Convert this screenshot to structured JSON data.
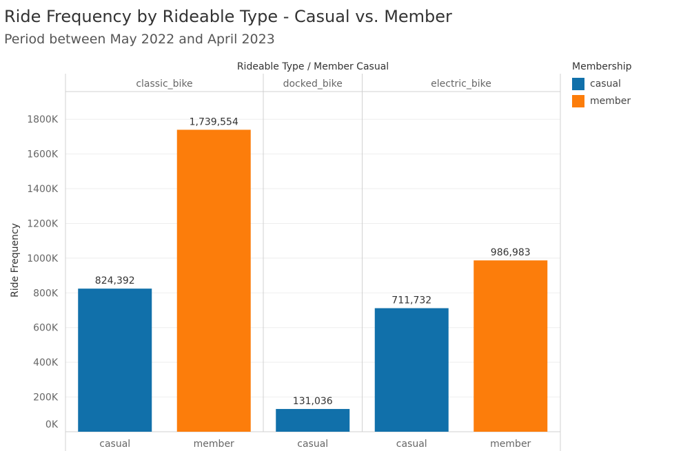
{
  "title": "Ride Frequency by Rideable Type - Casual vs. Member",
  "subtitle": "Period between May 2022 and April 2023",
  "legend": {
    "title": "Membership",
    "items": [
      {
        "label": "casual",
        "color": "#1170aa"
      },
      {
        "label": "member",
        "color": "#fc7d0b"
      }
    ]
  },
  "chart_data": {
    "type": "bar",
    "header_label": "Rideable Type  /  Member Casual",
    "ylabel": "Ride Frequency",
    "ylim": [
      0,
      1900000
    ],
    "yticks": [
      0,
      200000,
      400000,
      600000,
      800000,
      1000000,
      1200000,
      1400000,
      1600000,
      1800000
    ],
    "ytick_labels": [
      "0K",
      "200K",
      "400K",
      "600K",
      "800K",
      "1000K",
      "1200K",
      "1400K",
      "1600K",
      "1800K"
    ],
    "grid": true,
    "panels": [
      {
        "name": "classic_bike",
        "bars": [
          {
            "category": "casual",
            "value": 824392,
            "label": "824,392",
            "color": "#1170aa"
          },
          {
            "category": "member",
            "value": 1739554,
            "label": "1,739,554",
            "color": "#fc7d0b"
          }
        ]
      },
      {
        "name": "docked_bike",
        "bars": [
          {
            "category": "casual",
            "value": 131036,
            "label": "131,036",
            "color": "#1170aa"
          }
        ]
      },
      {
        "name": "electric_bike",
        "bars": [
          {
            "category": "casual",
            "value": 711732,
            "label": "711,732",
            "color": "#1170aa"
          },
          {
            "category": "member",
            "value": 986983,
            "label": "986,983",
            "color": "#fc7d0b"
          }
        ]
      }
    ]
  }
}
